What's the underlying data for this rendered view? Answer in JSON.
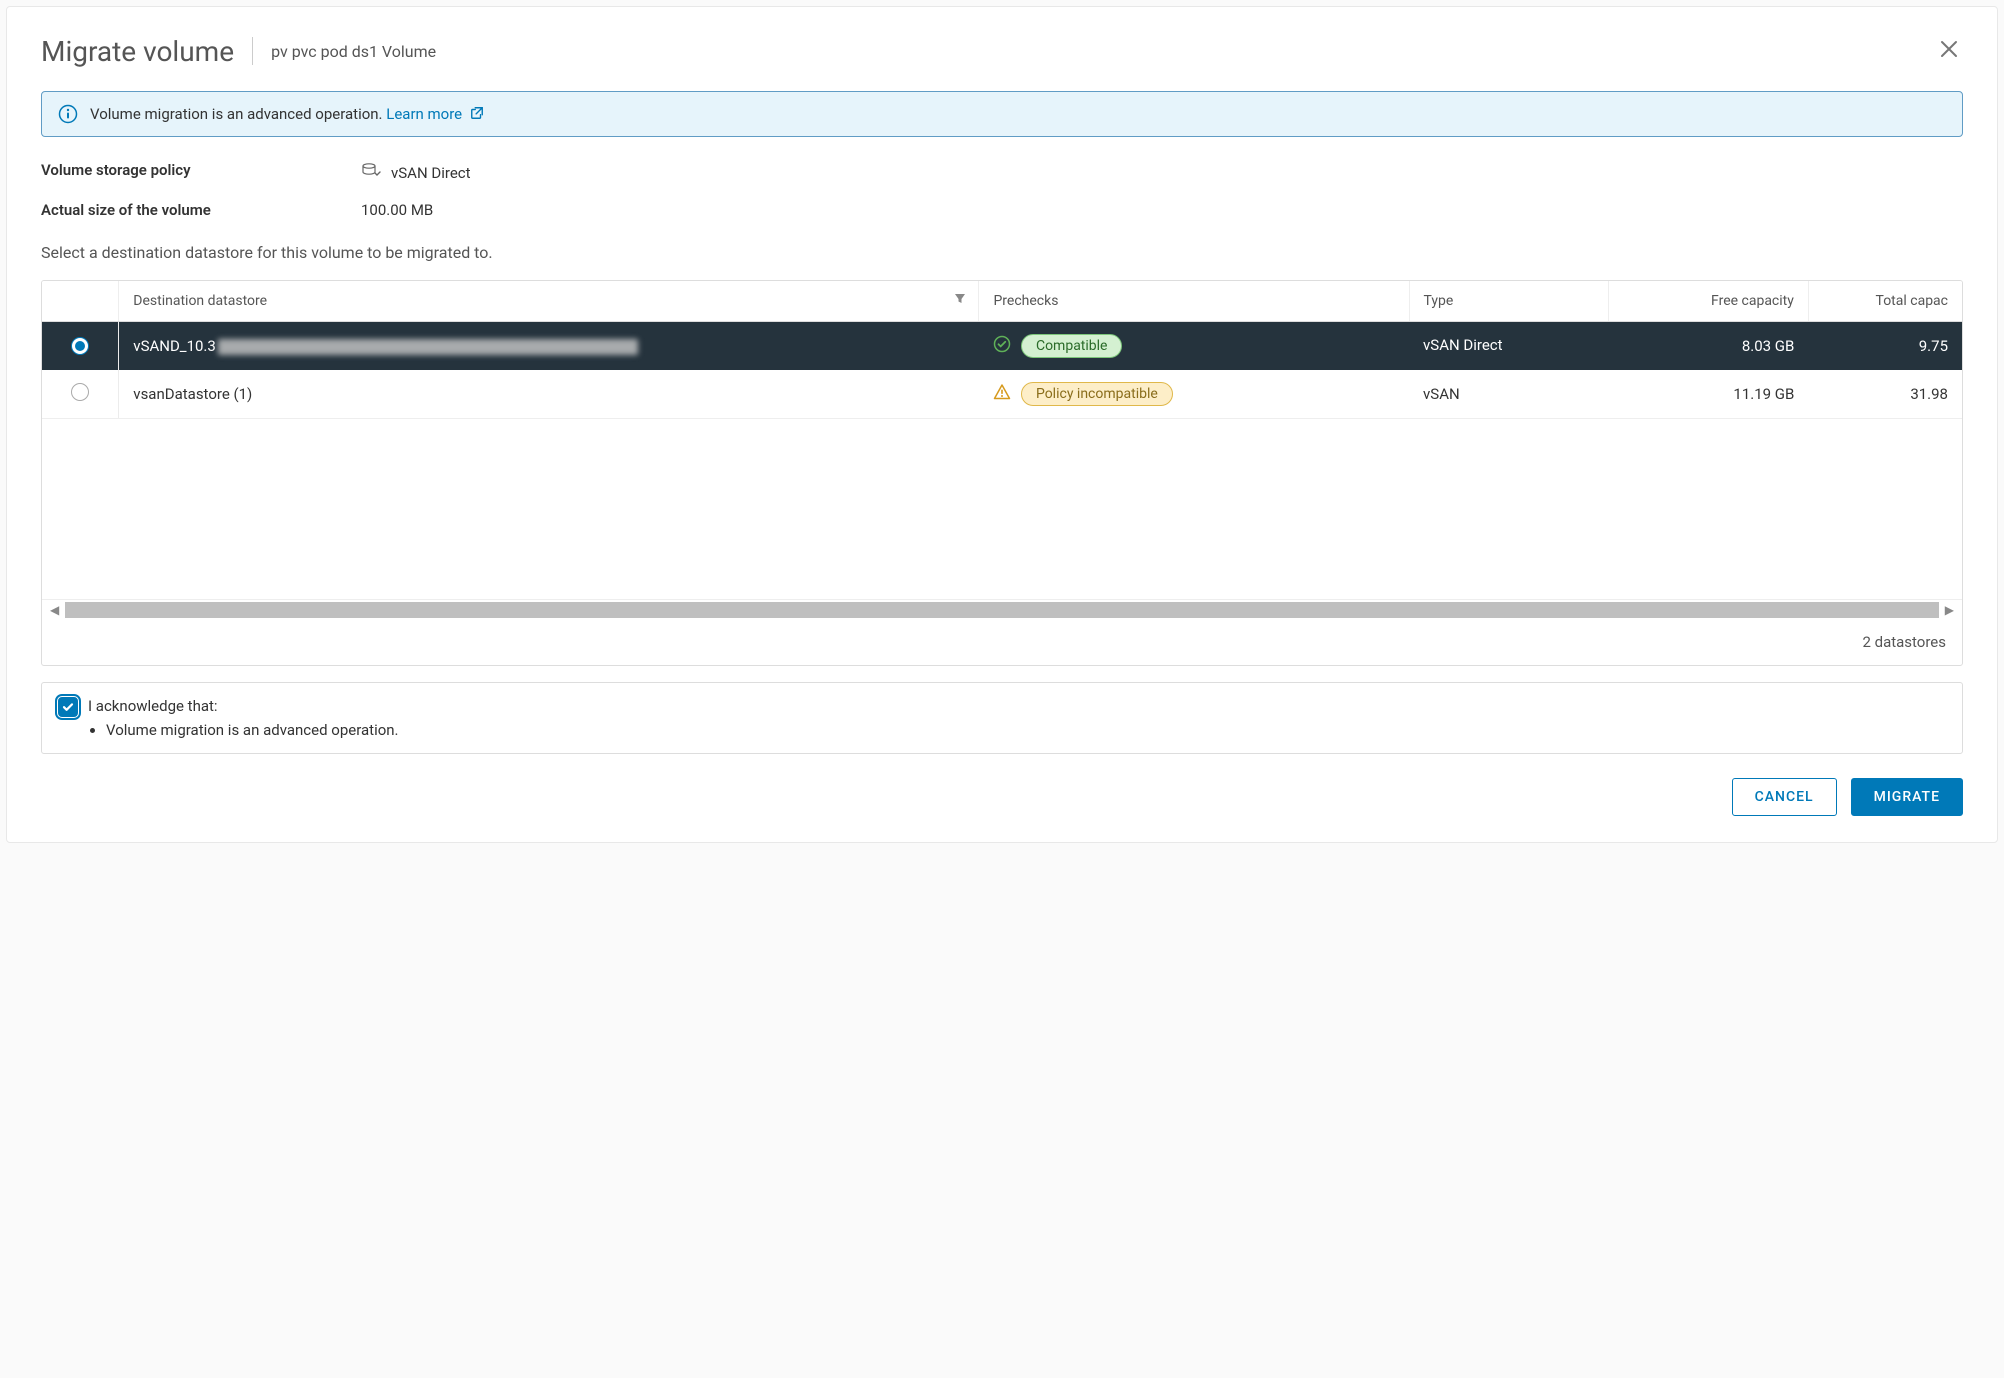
{
  "dialog": {
    "title": "Migrate volume",
    "subtitle": "pv pvc pod ds1 Volume"
  },
  "banner": {
    "text": "Volume migration is an advanced operation.",
    "link_label": "Learn more"
  },
  "meta": {
    "policy_label": "Volume storage policy",
    "policy_value": "vSAN Direct",
    "size_label": "Actual size of the volume",
    "size_value": "100.00 MB"
  },
  "instruction": "Select a destination datastore for this volume to be migrated to.",
  "table": {
    "columns": {
      "destination": "Destination datastore",
      "prechecks": "Prechecks",
      "type": "Type",
      "free": "Free capacity",
      "total": "Total capac"
    },
    "col_widths": {
      "radio": "50px",
      "destination": "560px",
      "prechecks": "280px",
      "type": "130px",
      "free": "130px",
      "total": "100px"
    },
    "rows": [
      {
        "selected": true,
        "name_prefix": "vSAND_10.3",
        "name_redacted": true,
        "precheck_status": "compatible",
        "precheck_label": "Compatible",
        "type": "vSAN Direct",
        "free": "8.03 GB",
        "total": "9.75 "
      },
      {
        "selected": false,
        "name": "vsanDatastore (1)",
        "precheck_status": "incompatible",
        "precheck_label": "Policy incompatible",
        "type": "vSAN",
        "free": "11.19 GB",
        "total": "31.98 "
      }
    ],
    "footer": "2 datastores"
  },
  "ack": {
    "label": "I acknowledge that:",
    "bullet": "Volume migration is an advanced operation.",
    "checked": true
  },
  "actions": {
    "cancel": "CANCEL",
    "migrate": "MIGRATE"
  },
  "colors": {
    "primary": "#0079b8",
    "banner_bg": "#e6f4fb",
    "banner_border": "#609cc5",
    "selected_row_bg": "#25333d",
    "pill_ok_bg": "#d4f0d1",
    "pill_ok_border": "#7cc67a",
    "pill_warn_bg": "#fdeec8",
    "pill_warn_border": "#e0b84a"
  }
}
